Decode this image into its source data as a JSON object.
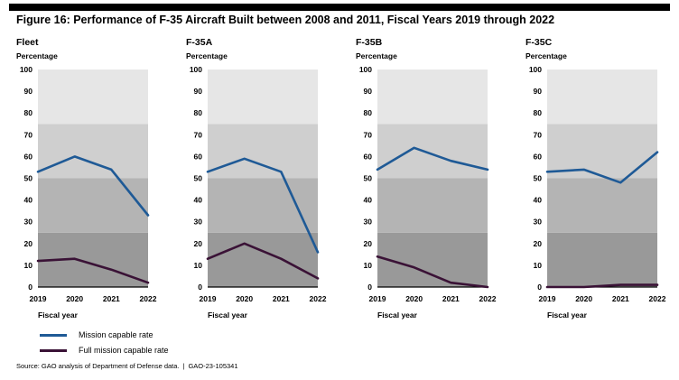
{
  "title": "Figure 16: Performance of F-35 Aircraft Built between 2008 and 2011, Fiscal Years 2019 through 2022",
  "source": "Source: GAO analysis of Department of Defense data.",
  "report_id": "GAO-23-105341",
  "source_separator": "|",
  "colors": {
    "mission_capable": "#1f5a96",
    "full_mission_capable": "#3a1236",
    "band_0_25": "#999999",
    "band_25_50": "#b4b4b4",
    "band_50_75": "#cfcfcf",
    "band_75_100": "#e6e6e6"
  },
  "chart_data": [
    {
      "type": "line",
      "title": "Fleet",
      "ylabel": "Percentage",
      "xlabel": "Fiscal year",
      "x": [
        "2019",
        "2020",
        "2021",
        "2022"
      ],
      "ylim": [
        0,
        100
      ],
      "yticks": [
        0,
        10,
        20,
        30,
        40,
        50,
        60,
        70,
        80,
        90,
        100
      ],
      "series": [
        {
          "name": "Mission capable rate",
          "values": [
            53,
            60,
            54,
            33
          ]
        },
        {
          "name": "Full mission capable rate",
          "values": [
            12,
            13,
            8,
            2
          ]
        }
      ]
    },
    {
      "type": "line",
      "title": "F-35A",
      "ylabel": "Percentage",
      "xlabel": "Fiscal year",
      "x": [
        "2019",
        "2020",
        "2021",
        "2022"
      ],
      "ylim": [
        0,
        100
      ],
      "yticks": [
        0,
        10,
        20,
        30,
        40,
        50,
        60,
        70,
        80,
        90,
        100
      ],
      "series": [
        {
          "name": "Mission capable rate",
          "values": [
            53,
            59,
            53,
            16
          ]
        },
        {
          "name": "Full mission capable rate",
          "values": [
            13,
            20,
            13,
            4
          ]
        }
      ]
    },
    {
      "type": "line",
      "title": "F-35B",
      "ylabel": "Percentage",
      "xlabel": "Fiscal year",
      "x": [
        "2019",
        "2020",
        "2021",
        "2022"
      ],
      "ylim": [
        0,
        100
      ],
      "yticks": [
        0,
        10,
        20,
        30,
        40,
        50,
        60,
        70,
        80,
        90,
        100
      ],
      "series": [
        {
          "name": "Mission capable rate",
          "values": [
            54,
            64,
            58,
            54
          ]
        },
        {
          "name": "Full mission capable rate",
          "values": [
            14,
            9,
            2,
            0
          ]
        }
      ]
    },
    {
      "type": "line",
      "title": "F-35C",
      "ylabel": "Percentage",
      "xlabel": "Fiscal year",
      "x": [
        "2019",
        "2020",
        "2021",
        "2022"
      ],
      "ylim": [
        0,
        100
      ],
      "yticks": [
        0,
        10,
        20,
        30,
        40,
        50,
        60,
        70,
        80,
        90,
        100
      ],
      "series": [
        {
          "name": "Mission capable rate",
          "values": [
            53,
            54,
            48,
            62
          ]
        },
        {
          "name": "Full mission capable rate",
          "values": [
            0,
            0,
            1,
            1
          ]
        }
      ]
    }
  ],
  "legend": [
    {
      "label": "Mission capable rate"
    },
    {
      "label": "Full mission capable rate"
    }
  ]
}
